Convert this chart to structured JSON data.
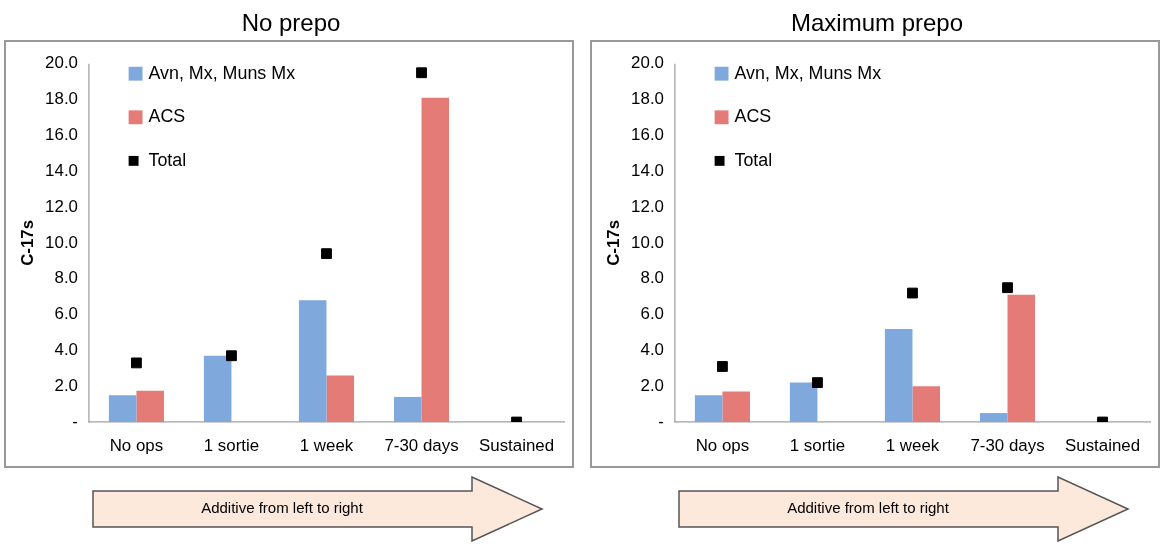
{
  "chart_data": [
    {
      "type": "bar",
      "title": "No prepo",
      "ylabel": "C-17s",
      "categories": [
        "No ops",
        "1 sortie",
        "1 week",
        "7-30 days",
        "Sustained"
      ],
      "series": [
        {
          "name": "Avn, Mx, Muns Mx",
          "color": "#7fa9dd",
          "values": [
            1.5,
            3.7,
            6.8,
            1.4,
            0
          ]
        },
        {
          "name": "ACS",
          "color": "#e57b77",
          "values": [
            1.75,
            0,
            2.6,
            18.1,
            0
          ]
        },
        {
          "name": "Total",
          "type": "scatter",
          "marker": "square",
          "color": "#000000",
          "values": [
            3.3,
            3.7,
            9.4,
            19.5,
            0
          ]
        }
      ],
      "ylim": [
        0,
        20
      ],
      "yticks": [
        {
          "value": 0,
          "label": "-"
        },
        {
          "value": 2,
          "label": "2.0"
        },
        {
          "value": 4,
          "label": "4.0"
        },
        {
          "value": 6,
          "label": "6.0"
        },
        {
          "value": 8,
          "label": "8.0"
        },
        {
          "value": 10,
          "label": "10.0"
        },
        {
          "value": 12,
          "label": "12.0"
        },
        {
          "value": 14,
          "label": "14.0"
        },
        {
          "value": 16,
          "label": "16.0"
        },
        {
          "value": 18,
          "label": "18.0"
        },
        {
          "value": 20,
          "label": "20.0"
        }
      ],
      "grid": false,
      "legend": "top left",
      "annotations": [
        "Additive from left to right"
      ]
    },
    {
      "type": "bar",
      "title": "Maximum prepo",
      "ylabel": "C-17s",
      "categories": [
        "No ops",
        "1 sortie",
        "1 week",
        "7-30 days",
        "Sustained"
      ],
      "series": [
        {
          "name": "Avn, Mx, Muns Mx",
          "color": "#7fa9dd",
          "values": [
            1.5,
            2.2,
            5.2,
            0.5,
            0
          ]
        },
        {
          "name": "ACS",
          "color": "#e57b77",
          "values": [
            1.7,
            0,
            2.0,
            7.1,
            0
          ]
        },
        {
          "name": "Total",
          "type": "scatter",
          "marker": "square",
          "color": "#000000",
          "values": [
            3.1,
            2.2,
            7.2,
            7.5,
            0
          ]
        }
      ],
      "ylim": [
        0,
        20
      ],
      "yticks": [
        {
          "value": 0,
          "label": "-"
        },
        {
          "value": 2,
          "label": "2.0"
        },
        {
          "value": 4,
          "label": "4.0"
        },
        {
          "value": 6,
          "label": "6.0"
        },
        {
          "value": 8,
          "label": "8.0"
        },
        {
          "value": 10,
          "label": "10.0"
        },
        {
          "value": 12,
          "label": "12.0"
        },
        {
          "value": 14,
          "label": "14.0"
        },
        {
          "value": 16,
          "label": "16.0"
        },
        {
          "value": 18,
          "label": "18.0"
        },
        {
          "value": 20,
          "label": "20.0"
        }
      ],
      "grid": false,
      "legend": "top left",
      "annotations": [
        "Additive from left to right"
      ]
    }
  ]
}
